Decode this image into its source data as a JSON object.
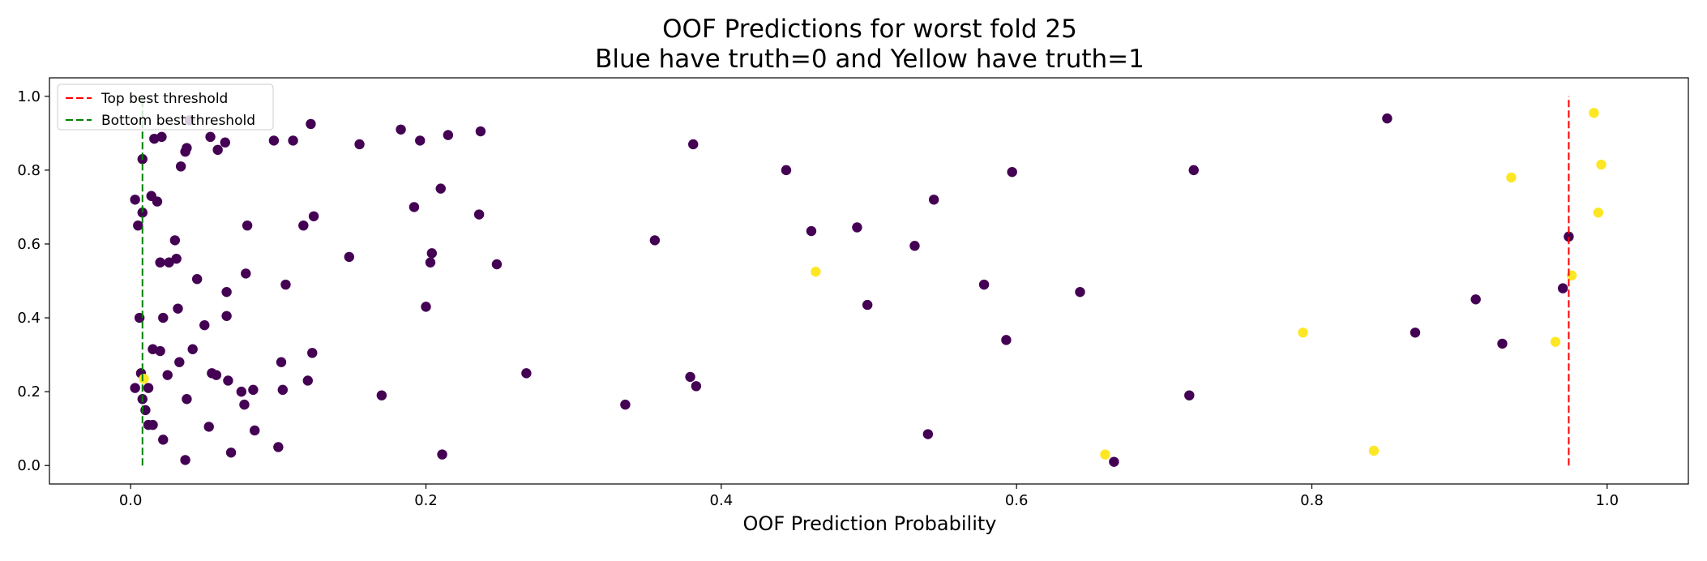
{
  "chart_data": {
    "type": "scatter",
    "title": "OOF Predictions for worst fold 25",
    "subtitle": "Blue have truth=0 and Yellow have truth=1",
    "xlabel": "OOF Prediction Probability",
    "ylabel": "",
    "xlim": [
      -0.055,
      1.055
    ],
    "ylim": [
      -0.05,
      1.05
    ],
    "xticks": [
      0.0,
      0.2,
      0.4,
      0.6,
      0.8,
      1.0
    ],
    "xtick_labels": [
      "0.0",
      "0.2",
      "0.4",
      "0.6",
      "0.8",
      "1.0"
    ],
    "yticks": [
      0.0,
      0.2,
      0.4,
      0.6,
      0.8,
      1.0
    ],
    "ytick_labels": [
      "0.0",
      "0.2",
      "0.4",
      "0.6",
      "0.8",
      "1.0"
    ],
    "grid": false,
    "legend_position": "top-left",
    "thresholds": [
      {
        "label": "Top best threshold",
        "x": 0.974,
        "y_range": [
          0.0,
          1.0
        ],
        "color": "#ff0000",
        "style": "dashed"
      },
      {
        "label": "Bottom best threshold",
        "x": 0.008,
        "y_range": [
          0.0,
          1.0
        ],
        "color": "#008000",
        "style": "dashed"
      }
    ],
    "series": [
      {
        "color": "#440154",
        "points": [
          [
            0.003,
            0.72
          ],
          [
            0.005,
            0.65
          ],
          [
            0.006,
            0.4
          ],
          [
            0.008,
            0.83
          ],
          [
            0.003,
            0.21
          ],
          [
            0.007,
            0.25
          ],
          [
            0.008,
            0.18
          ],
          [
            0.01,
            0.15
          ],
          [
            0.012,
            0.11
          ],
          [
            0.015,
            0.11
          ],
          [
            0.012,
            0.21
          ],
          [
            0.008,
            0.685
          ],
          [
            0.014,
            0.73
          ],
          [
            0.018,
            0.715
          ],
          [
            0.015,
            0.315
          ],
          [
            0.02,
            0.31
          ],
          [
            0.022,
            0.4
          ],
          [
            0.02,
            0.55
          ],
          [
            0.026,
            0.55
          ],
          [
            0.025,
            0.245
          ],
          [
            0.022,
            0.07
          ],
          [
            0.016,
            0.885
          ],
          [
            0.021,
            0.89
          ],
          [
            0.03,
            0.61
          ],
          [
            0.031,
            0.56
          ],
          [
            0.032,
            0.425
          ],
          [
            0.033,
            0.28
          ],
          [
            0.034,
            0.81
          ],
          [
            0.037,
            0.85
          ],
          [
            0.038,
            0.86
          ],
          [
            0.038,
            0.18
          ],
          [
            0.037,
            0.015
          ],
          [
            0.04,
            0.935
          ],
          [
            0.042,
            0.315
          ],
          [
            0.045,
            0.505
          ],
          [
            0.05,
            0.38
          ],
          [
            0.053,
            0.105
          ],
          [
            0.054,
            0.89
          ],
          [
            0.055,
            0.25
          ],
          [
            0.058,
            0.245
          ],
          [
            0.059,
            0.855
          ],
          [
            0.064,
            0.875
          ],
          [
            0.065,
            0.47
          ],
          [
            0.065,
            0.405
          ],
          [
            0.066,
            0.23
          ],
          [
            0.068,
            0.035
          ],
          [
            0.075,
            0.2
          ],
          [
            0.077,
            0.165
          ],
          [
            0.078,
            0.52
          ],
          [
            0.079,
            0.65
          ],
          [
            0.083,
            0.205
          ],
          [
            0.084,
            0.095
          ],
          [
            0.097,
            0.88
          ],
          [
            0.1,
            0.05
          ],
          [
            0.102,
            0.28
          ],
          [
            0.103,
            0.205
          ],
          [
            0.105,
            0.49
          ],
          [
            0.11,
            0.88
          ],
          [
            0.117,
            0.65
          ],
          [
            0.12,
            0.23
          ],
          [
            0.122,
            0.925
          ],
          [
            0.123,
            0.305
          ],
          [
            0.124,
            0.675
          ],
          [
            0.148,
            0.565
          ],
          [
            0.155,
            0.87
          ],
          [
            0.17,
            0.19
          ],
          [
            0.183,
            0.91
          ],
          [
            0.192,
            0.7
          ],
          [
            0.196,
            0.88
          ],
          [
            0.2,
            0.43
          ],
          [
            0.203,
            0.55
          ],
          [
            0.204,
            0.575
          ],
          [
            0.21,
            0.75
          ],
          [
            0.211,
            0.03
          ],
          [
            0.215,
            0.895
          ],
          [
            0.236,
            0.68
          ],
          [
            0.237,
            0.905
          ],
          [
            0.248,
            0.545
          ],
          [
            0.268,
            0.25
          ],
          [
            0.335,
            0.165
          ],
          [
            0.355,
            0.61
          ],
          [
            0.379,
            0.24
          ],
          [
            0.381,
            0.87
          ],
          [
            0.383,
            0.215
          ],
          [
            0.444,
            0.8
          ],
          [
            0.461,
            0.635
          ],
          [
            0.492,
            0.645
          ],
          [
            0.499,
            0.435
          ],
          [
            0.531,
            0.595
          ],
          [
            0.54,
            0.085
          ],
          [
            0.544,
            0.72
          ],
          [
            0.578,
            0.49
          ],
          [
            0.593,
            0.34
          ],
          [
            0.597,
            0.795
          ],
          [
            0.643,
            0.47
          ],
          [
            0.666,
            0.01
          ],
          [
            0.717,
            0.19
          ],
          [
            0.72,
            0.8
          ],
          [
            0.851,
            0.94
          ],
          [
            0.87,
            0.36
          ],
          [
            0.911,
            0.45
          ],
          [
            0.929,
            0.33
          ],
          [
            0.97,
            0.48
          ],
          [
            0.974,
            0.62
          ]
        ]
      },
      {
        "color": "#fde725",
        "points": [
          [
            0.009,
            0.235
          ],
          [
            0.464,
            0.525
          ],
          [
            0.66,
            0.03
          ],
          [
            0.794,
            0.36
          ],
          [
            0.842,
            0.04
          ],
          [
            0.935,
            0.78
          ],
          [
            0.965,
            0.335
          ],
          [
            0.976,
            0.515
          ],
          [
            0.991,
            0.955
          ],
          [
            0.994,
            0.685
          ],
          [
            0.996,
            0.815
          ]
        ]
      }
    ]
  }
}
